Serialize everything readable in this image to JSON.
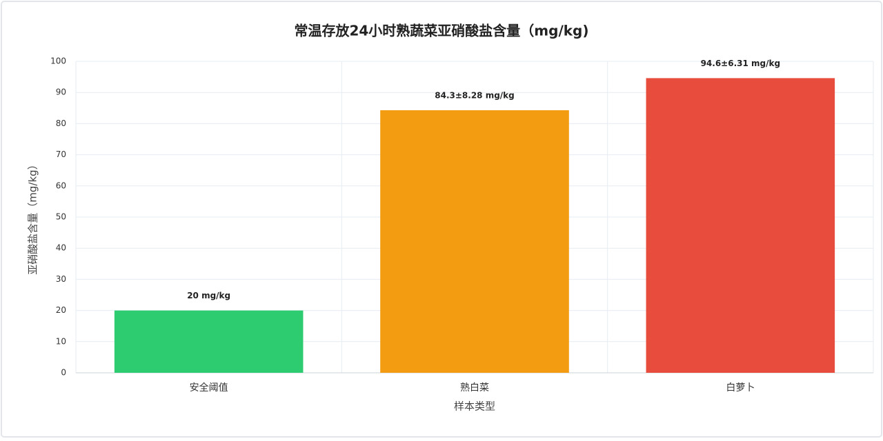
{
  "chart_data": {
    "type": "bar",
    "title": "常温存放24小时熟蔬菜亚硝酸盐含量（mg/kg)",
    "x_label": "样本类型",
    "y_label": "亚硝酸盐含量（mg/kg）",
    "categories": [
      "安全阈值",
      "熟白菜",
      "白萝卜"
    ],
    "values": [
      20,
      84.3,
      94.6
    ],
    "value_labels": [
      "20 mg/kg",
      "84.3±8.28 mg/kg",
      "94.6±6.31 mg/kg"
    ],
    "colors": [
      "#2ecc71",
      "#f39c12",
      "#e74c3c"
    ],
    "ylim": [
      0,
      100
    ],
    "yticks": [
      0,
      10,
      20,
      30,
      40,
      50,
      60,
      70,
      80,
      90,
      100
    ],
    "grid": true
  }
}
